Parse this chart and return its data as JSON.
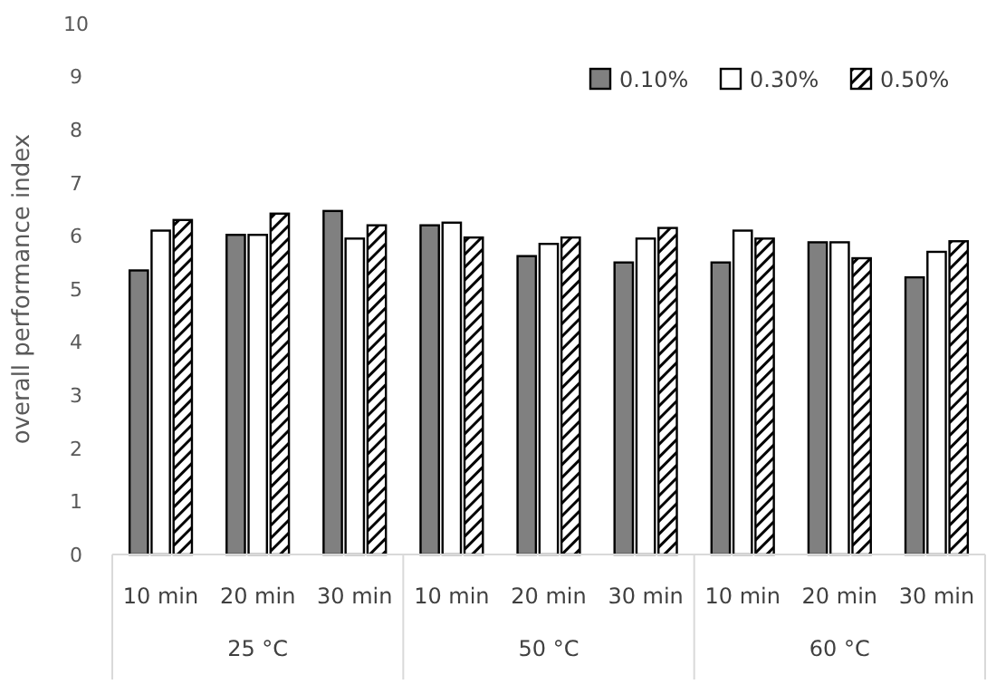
{
  "chart_data": {
    "type": "bar",
    "ylabel": "overall performance index",
    "categories": [
      "10 min",
      "20 min",
      "30 min",
      "10 min",
      "20 min",
      "30 min",
      "10 min",
      "20 min",
      "30 min"
    ],
    "series": [
      {
        "name": "0.10%",
        "color": "#808080",
        "values": [
          5.35,
          6.02,
          6.47,
          6.2,
          5.62,
          5.5,
          5.5,
          5.88,
          5.22
        ]
      },
      {
        "name": "0.30%",
        "color": "#ffffff",
        "values": [
          6.1,
          6.02,
          5.95,
          6.25,
          5.85,
          5.95,
          6.1,
          5.88,
          5.7
        ]
      },
      {
        "name": "0.50%",
        "color": "#000000",
        "values": [
          6.3,
          6.42,
          6.2,
          5.97,
          5.97,
          6.15,
          5.95,
          5.58,
          5.9
        ]
      }
    ],
    "annotations": [
      "25 °C",
      "50 °C",
      "60 °C"
    ],
    "ylim": [
      0,
      10
    ],
    "yticks": [
      0,
      1,
      2,
      3,
      4,
      5,
      6,
      7,
      8,
      9,
      10
    ],
    "grid": false,
    "legend": "top right"
  }
}
